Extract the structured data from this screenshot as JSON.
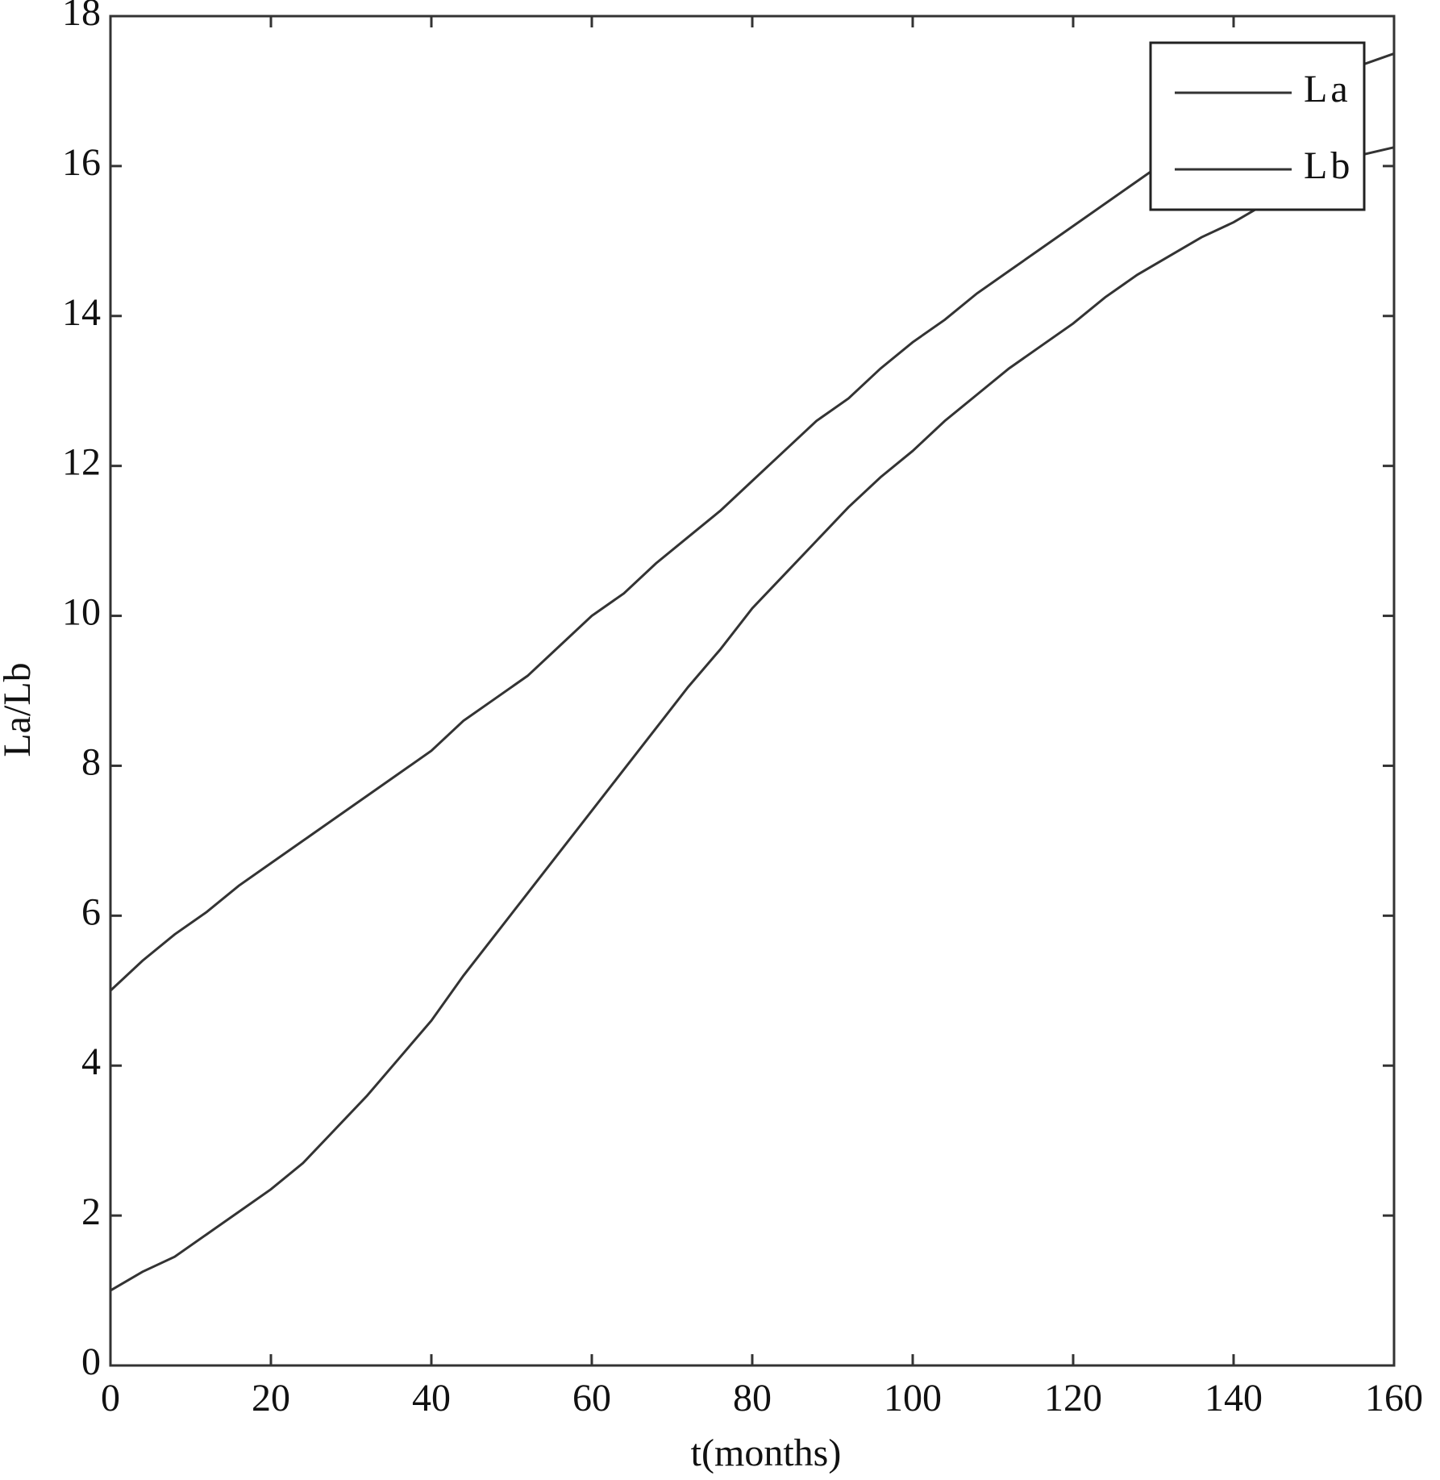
{
  "chart_data": {
    "type": "line",
    "xlabel": "t(months)",
    "ylabel": "La/Lb",
    "x": [
      0,
      4,
      8,
      12,
      16,
      20,
      24,
      28,
      32,
      36,
      40,
      44,
      48,
      52,
      56,
      60,
      64,
      68,
      72,
      76,
      80,
      84,
      88,
      92,
      96,
      100,
      104,
      108,
      112,
      116,
      120,
      124,
      128,
      132,
      136,
      140,
      144,
      148,
      152,
      156,
      160
    ],
    "series": [
      {
        "name": "La",
        "color": "#333333",
        "values": [
          5.0,
          5.4,
          5.75,
          6.05,
          6.4,
          6.7,
          7.0,
          7.3,
          7.6,
          7.9,
          8.2,
          8.6,
          8.9,
          9.2,
          9.6,
          10.0,
          10.3,
          10.7,
          11.05,
          11.4,
          11.8,
          12.2,
          12.6,
          12.9,
          13.3,
          13.65,
          13.95,
          14.3,
          14.6,
          14.9,
          15.2,
          15.5,
          15.8,
          16.1,
          16.4,
          16.7,
          16.95,
          17.0,
          17.2,
          17.35,
          17.5
        ]
      },
      {
        "name": "Lb",
        "color": "#333333",
        "values": [
          1.0,
          1.25,
          1.45,
          1.75,
          2.05,
          2.35,
          2.7,
          3.15,
          3.6,
          4.1,
          4.6,
          5.2,
          5.75,
          6.3,
          6.85,
          7.4,
          7.95,
          8.5,
          9.05,
          9.55,
          10.1,
          10.55,
          11.0,
          11.45,
          11.85,
          12.2,
          12.6,
          12.95,
          13.3,
          13.6,
          13.9,
          14.25,
          14.55,
          14.8,
          15.05,
          15.25,
          15.5,
          15.75,
          15.95,
          16.15,
          16.25
        ]
      }
    ],
    "xlim": [
      0,
      160
    ],
    "xticks": [
      0,
      20,
      40,
      60,
      80,
      100,
      120,
      140,
      160
    ],
    "ylim": [
      0,
      18
    ],
    "yticks": [
      0,
      2,
      4,
      6,
      8,
      10,
      12,
      14,
      16,
      18
    ],
    "grid": false,
    "legend": "upper right"
  }
}
